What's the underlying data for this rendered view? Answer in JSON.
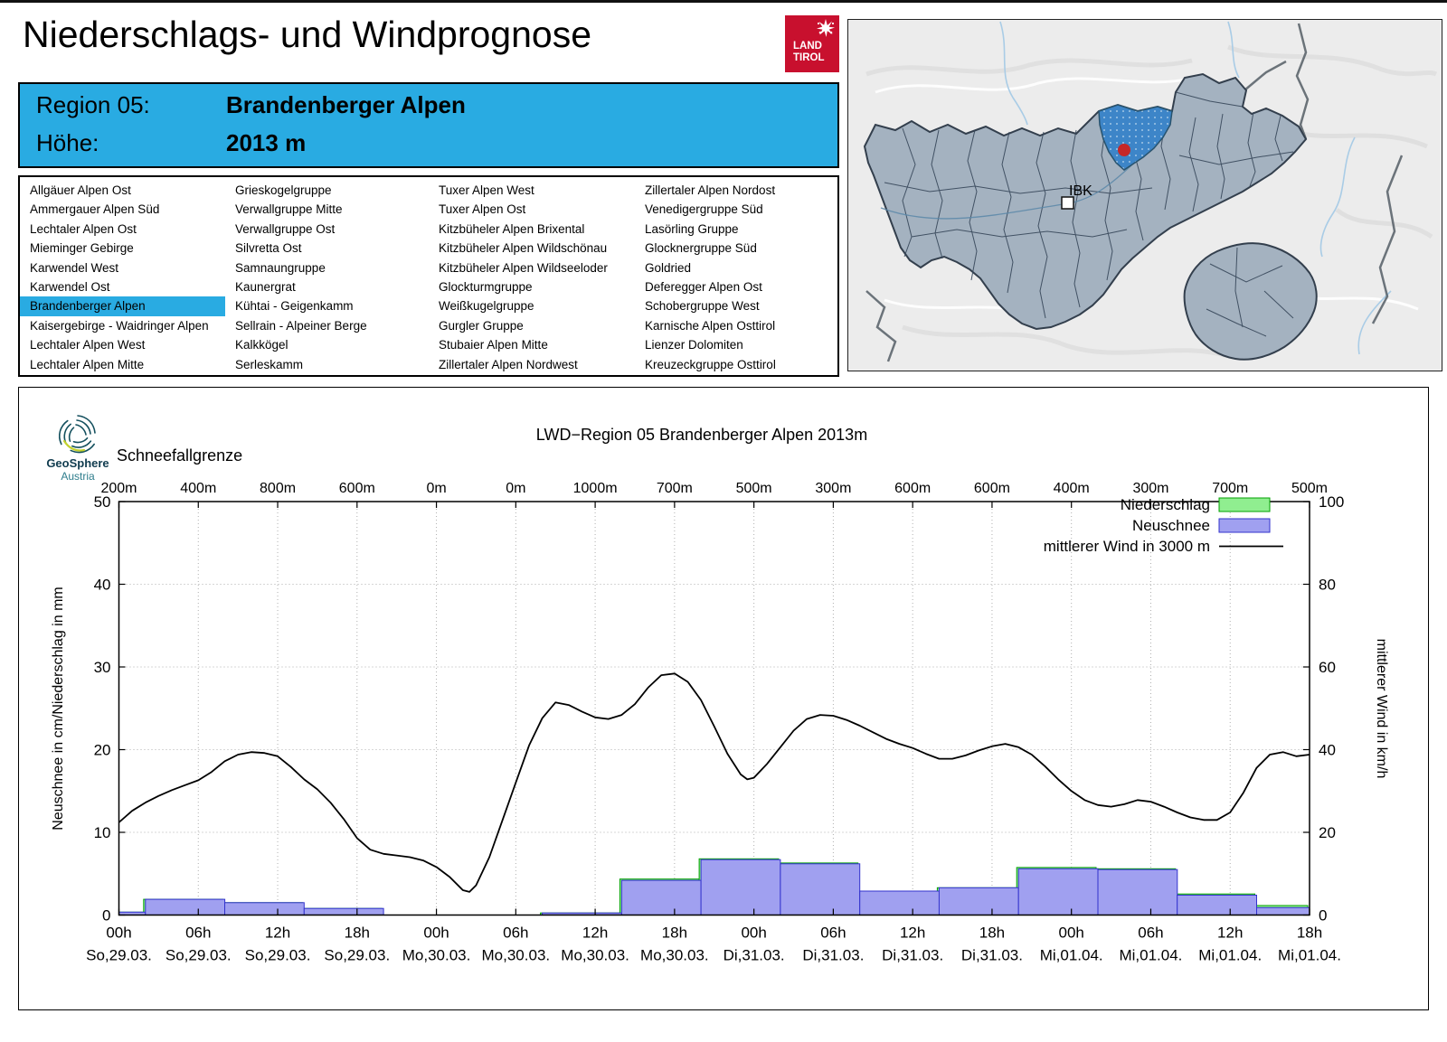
{
  "page": {
    "title": "Niederschlags- und Windprognose"
  },
  "land_tirol_logo": {
    "line1": "LAND",
    "line2": "TIROL"
  },
  "header": {
    "region_label": "Region 05:",
    "region_value": "Brandenberger Alpen",
    "altitude_label": "Höhe:",
    "altitude_value": "2013 m",
    "accent_color": "#29ABE2"
  },
  "region_list": {
    "selected": {
      "col": 0,
      "row": 6
    },
    "columns": [
      [
        "Allgäuer Alpen Ost",
        "Ammergauer Alpen Süd",
        "Lechtaler Alpen Ost",
        "Mieminger Gebirge",
        "Karwendel West",
        "Karwendel Ost",
        "Brandenberger Alpen",
        "Kaisergebirge - Waidringer Alpen",
        "Lechtaler Alpen West",
        "Lechtaler Alpen Mitte"
      ],
      [
        "Grieskogelgruppe",
        "Verwallgruppe Mitte",
        "Verwallgruppe Ost",
        "Silvretta Ost",
        "Samnaungruppe",
        "Kaunergrat",
        "Kühtai - Geigenkamm",
        "Sellrain - Alpeiner Berge",
        "Kalkkögel",
        "Serleskamm"
      ],
      [
        "Tuxer Alpen West",
        "Tuxer Alpen Ost",
        "Kitzbüheler Alpen Brixental",
        "Kitzbüheler Alpen Wildschönau",
        "Kitzbüheler Alpen Wildseeloder",
        "Glockturmgruppe",
        "Weißkugelgruppe",
        "Gurgler Gruppe",
        "Stubaier Alpen Mitte",
        "Zillertaler Alpen Nordwest"
      ],
      [
        "Zillertaler Alpen Nordost",
        "Venedigergruppe Süd",
        "Lasörling Gruppe",
        "Glocknergruppe Süd",
        "Goldried",
        "Deferegger Alpen Ost",
        "Schobergruppe West",
        "Karnische Alpen Osttirol",
        "Lienzer Dolomiten",
        "Kreuzeckgruppe Osttirol"
      ]
    ]
  },
  "map": {
    "ibk_label": "IBK",
    "region_fill": "#A4B2C0",
    "region_border": "#37475A",
    "highlight_color": "#3D85C8",
    "marker_color": "#C62828"
  },
  "geosphere_logo": {
    "line1": "GeoSphere",
    "line2": "Austria"
  },
  "chart_data": {
    "type": "mixed-bar-line",
    "title": "LWD−Region 05 Brandenberger Alpen 2013m",
    "top_axis": {
      "label": "Schneefallgrenze",
      "values": [
        "200m",
        "400m",
        "800m",
        "600m",
        "0m",
        "0m",
        "1000m",
        "700m",
        "500m",
        "300m",
        "600m",
        "600m",
        "400m",
        "300m",
        "700m",
        "500m"
      ]
    },
    "x_axis": {
      "tick_hours": [
        0,
        6,
        12,
        18,
        24,
        30,
        36,
        42,
        48,
        54,
        60,
        66,
        72,
        78,
        84,
        90
      ],
      "time_labels": [
        "00h",
        "06h",
        "12h",
        "18h",
        "00h",
        "06h",
        "12h",
        "18h",
        "00h",
        "06h",
        "12h",
        "18h",
        "00h",
        "06h",
        "12h",
        "18h"
      ],
      "date_labels": [
        "So,29.03.",
        "So,29.03.",
        "So,29.03.",
        "So,29.03.",
        "Mo,30.03.",
        "Mo,30.03.",
        "Mo,30.03.",
        "Mo,30.03.",
        "Di,31.03.",
        "Di,31.03.",
        "Di,31.03.",
        "Di,31.03.",
        "Mi,01.04.",
        "Mi,01.04.",
        "Mi,01.04.",
        "Mi,01.04."
      ]
    },
    "y_left": {
      "label": "Neuschnee in cm/Niederschlag in mm",
      "ticks": [
        0,
        10,
        20,
        30,
        40,
        50
      ],
      "range": [
        0,
        50
      ]
    },
    "y_right": {
      "label": "mittlerer Wind in km/h",
      "ticks": [
        0,
        20,
        40,
        60,
        80,
        100
      ],
      "range": [
        0,
        100
      ]
    },
    "legend": [
      {
        "label": "Niederschlag",
        "type": "box",
        "fill": "#90EE90",
        "stroke": "#00A000"
      },
      {
        "label": "Neuschnee",
        "type": "box",
        "fill": "#A0A0F0",
        "stroke": "#3232CD"
      },
      {
        "label": "mittlerer Wind in 3000 m",
        "type": "line",
        "stroke": "#000000"
      }
    ],
    "niederschlag_bars": [
      [
        0,
        2,
        0.35
      ],
      [
        2,
        8,
        1.9
      ],
      [
        8,
        14,
        1.5
      ],
      [
        14,
        20,
        0.8
      ],
      [
        32,
        38,
        0.25
      ],
      [
        38,
        44,
        4.35
      ],
      [
        44,
        50,
        6.8
      ],
      [
        50,
        56,
        6.3
      ],
      [
        56,
        62,
        2.9
      ],
      [
        62,
        68,
        3.3
      ],
      [
        68,
        74,
        5.75
      ],
      [
        74,
        80,
        5.6
      ],
      [
        80,
        86,
        2.55
      ],
      [
        86,
        90,
        1.15
      ]
    ],
    "neuschnee_bars": [
      [
        0,
        2,
        0.35
      ],
      [
        2,
        8,
        1.9
      ],
      [
        8,
        14,
        1.5
      ],
      [
        14,
        20,
        0.8
      ],
      [
        32,
        38,
        0.25
      ],
      [
        38,
        44,
        4.2
      ],
      [
        44,
        50,
        6.7
      ],
      [
        50,
        56,
        6.2
      ],
      [
        56,
        62,
        2.9
      ],
      [
        62,
        68,
        3.3
      ],
      [
        68,
        74,
        5.6
      ],
      [
        74,
        80,
        5.5
      ],
      [
        80,
        86,
        2.4
      ],
      [
        86,
        90,
        0.9
      ]
    ],
    "wind_line_kmh": [
      [
        0,
        22.4
      ],
      [
        1,
        25.2
      ],
      [
        2,
        27.2
      ],
      [
        3,
        28.8
      ],
      [
        4,
        30.2
      ],
      [
        5,
        31.4
      ],
      [
        6,
        32.6
      ],
      [
        7,
        34.6
      ],
      [
        8,
        37.2
      ],
      [
        9,
        38.8
      ],
      [
        10,
        39.4
      ],
      [
        11,
        39.2
      ],
      [
        12,
        38.4
      ],
      [
        13,
        35.8
      ],
      [
        14,
        32.8
      ],
      [
        15,
        30.4
      ],
      [
        16,
        27.2
      ],
      [
        17,
        23.2
      ],
      [
        18,
        18.6
      ],
      [
        19,
        15.8
      ],
      [
        20,
        14.8
      ],
      [
        21,
        14.4
      ],
      [
        22,
        14.0
      ],
      [
        23,
        13.2
      ],
      [
        24,
        11.6
      ],
      [
        25,
        9.2
      ],
      [
        26,
        6.0
      ],
      [
        26.5,
        5.6
      ],
      [
        27,
        7.2
      ],
      [
        28,
        14.0
      ],
      [
        29,
        23.0
      ],
      [
        30,
        32.0
      ],
      [
        31,
        41.0
      ],
      [
        32,
        47.6
      ],
      [
        33,
        51.4
      ],
      [
        34,
        50.8
      ],
      [
        35,
        49.2
      ],
      [
        36,
        47.8
      ],
      [
        37,
        47.4
      ],
      [
        38,
        48.4
      ],
      [
        39,
        51.0
      ],
      [
        40,
        55.0
      ],
      [
        41,
        58.0
      ],
      [
        42,
        58.4
      ],
      [
        43,
        56.4
      ],
      [
        44,
        52.0
      ],
      [
        45,
        45.6
      ],
      [
        46,
        39.0
      ],
      [
        47,
        34.0
      ],
      [
        47.5,
        32.8
      ],
      [
        48,
        33.2
      ],
      [
        49,
        36.6
      ],
      [
        50,
        40.6
      ],
      [
        51,
        44.6
      ],
      [
        52,
        47.4
      ],
      [
        53,
        48.4
      ],
      [
        54,
        48.2
      ],
      [
        55,
        47.2
      ],
      [
        56,
        45.8
      ],
      [
        57,
        44.2
      ],
      [
        58,
        42.6
      ],
      [
        59,
        41.4
      ],
      [
        60,
        40.4
      ],
      [
        61,
        39.0
      ],
      [
        62,
        37.8
      ],
      [
        63,
        37.8
      ],
      [
        64,
        38.6
      ],
      [
        65,
        39.8
      ],
      [
        66,
        40.8
      ],
      [
        67,
        41.4
      ],
      [
        68,
        40.6
      ],
      [
        69,
        38.8
      ],
      [
        70,
        36.0
      ],
      [
        71,
        32.8
      ],
      [
        72,
        30.0
      ],
      [
        73,
        27.8
      ],
      [
        74,
        26.6
      ],
      [
        75,
        26.2
      ],
      [
        76,
        26.8
      ],
      [
        77,
        27.8
      ],
      [
        78,
        27.4
      ],
      [
        79,
        26.2
      ],
      [
        80,
        24.8
      ],
      [
        81,
        23.6
      ],
      [
        82,
        23.0
      ],
      [
        83,
        23.0
      ],
      [
        84,
        24.8
      ],
      [
        85,
        29.6
      ],
      [
        86,
        35.6
      ],
      [
        87,
        38.8
      ],
      [
        88,
        39.4
      ],
      [
        89,
        38.4
      ],
      [
        90,
        38.8
      ]
    ]
  }
}
